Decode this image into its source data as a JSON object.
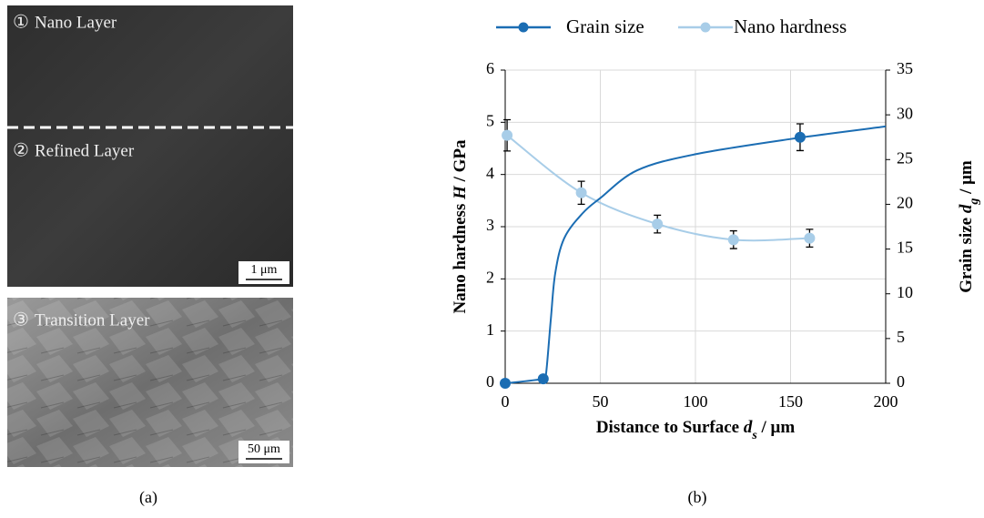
{
  "panel_a": {
    "top_image": {
      "marker": "①",
      "label": "Nano Layer",
      "marker2": "②",
      "label2": "Refined Layer",
      "scale": "1 μm"
    },
    "bottom_image": {
      "marker": "③",
      "label": "Transition Layer",
      "scale": "50 μm"
    },
    "caption": "(a)"
  },
  "panel_b": {
    "caption": "(b)"
  },
  "chart_data": {
    "type": "line",
    "xlabel": {
      "text": "Distance to Surface ",
      "var": "d",
      "sub": "s",
      "unit": " / μm"
    },
    "ylabel": {
      "text": "Nano hardness ",
      "var": "H",
      "unit": " / GPa"
    },
    "y2label": {
      "text": "Grain size ",
      "var": "d",
      "sub": "g",
      "unit": " / μm"
    },
    "xlim": [
      0,
      200
    ],
    "xticks": [
      0,
      50,
      100,
      150,
      200
    ],
    "ylim": [
      0,
      6
    ],
    "yticks": [
      0,
      1,
      2,
      3,
      4,
      5,
      6
    ],
    "y2lim": [
      0,
      35
    ],
    "y2ticks": [
      0,
      5,
      10,
      15,
      20,
      25,
      30,
      35
    ],
    "grid": true,
    "legend": "top",
    "series": [
      {
        "name": "Grain size",
        "color": "#1b6db3",
        "axis": "y2",
        "x": [
          0,
          20,
          155
        ],
        "values": [
          0,
          0.5,
          27.5
        ],
        "errors": [
          null,
          null,
          1.5
        ],
        "curve": {
          "x": [
            0,
            20,
            21.5,
            24,
            26.3,
            31,
            40.7,
            50,
            69.4,
            100,
            150,
            200
          ],
          "values": [
            0,
            0.5,
            1.1,
            7.2,
            12.3,
            16.2,
            19,
            20.7,
            23.8,
            25.6,
            27.3,
            28.7
          ]
        }
      },
      {
        "name": "Nano hardness",
        "color": "#a8cde8",
        "x": [
          1,
          40,
          80,
          120,
          160
        ],
        "values": [
          4.75,
          3.65,
          3.05,
          2.75,
          2.78
        ],
        "errors": [
          0.3,
          0.22,
          0.17,
          0.17,
          0.17
        ]
      }
    ]
  }
}
